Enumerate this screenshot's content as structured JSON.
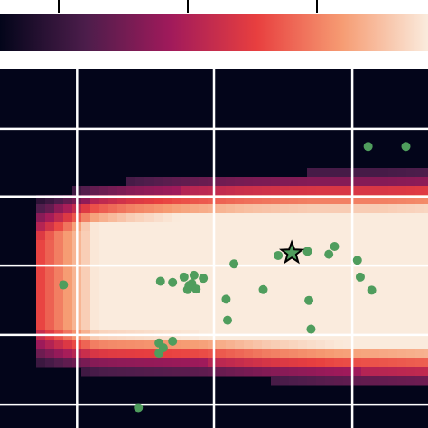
{
  "chart_data": {
    "type": "heatmap",
    "title": "",
    "xlabel": "",
    "ylabel": "",
    "colormap": "rocket",
    "colormap_stops": [
      "#03051a",
      "#4c1d4b",
      "#a11a5b",
      "#e83f3f",
      "#f69c73",
      "#faebdd"
    ],
    "colorbar": {
      "orientation": "horizontal",
      "position": "top",
      "tick_count": 3
    },
    "grid": true,
    "grid_color": "#ffffff",
    "xlim": [
      0,
      60
    ],
    "ylim": [
      0,
      60
    ],
    "heatmap_density": {
      "x_range": [
        5.5,
        60
      ],
      "y_top": [
        24,
        23,
        22,
        21.5,
        21,
        20.7,
        20.4,
        20.2,
        20,
        19.8,
        19.7,
        19.6,
        19.5,
        19.5,
        19.5,
        19.5,
        19.4,
        19.3
      ],
      "y_bottom": [
        47.5,
        48,
        48.3,
        48.5,
        48.6,
        48.7,
        48.8,
        48.9,
        49.2,
        49.5,
        49.8,
        50,
        50.2,
        50.4,
        50.5,
        50.6,
        50.7,
        50.8
      ],
      "peak": 1.0
    },
    "series": [
      {
        "type": "scatter",
        "color": "#4f9d5d",
        "points": [
          [
            51.6,
            13.0
          ],
          [
            56.9,
            13.0
          ],
          [
            8.9,
            36.1
          ],
          [
            22.5,
            35.5
          ],
          [
            24.2,
            35.7
          ],
          [
            25.8,
            34.8
          ],
          [
            28.5,
            35.0
          ],
          [
            27.2,
            34.5
          ],
          [
            26.9,
            35.9
          ],
          [
            26.3,
            36.9
          ],
          [
            26.5,
            36.2
          ],
          [
            27.5,
            36.8
          ],
          [
            32.8,
            32.6
          ],
          [
            36.9,
            36.9
          ],
          [
            31.7,
            38.5
          ],
          [
            31.9,
            42.0
          ],
          [
            39.0,
            31.2
          ],
          [
            43.1,
            30.5
          ],
          [
            46.1,
            31.0
          ],
          [
            46.9,
            29.7
          ],
          [
            43.3,
            38.7
          ],
          [
            43.6,
            43.5
          ],
          [
            50.1,
            32.0
          ],
          [
            50.5,
            34.8
          ],
          [
            52.1,
            37.0
          ],
          [
            22.3,
            45.8
          ],
          [
            24.2,
            45.5
          ],
          [
            22.9,
            46.6
          ],
          [
            22.3,
            47.5
          ],
          [
            19.4,
            56.6
          ]
        ]
      },
      {
        "type": "marker",
        "marker": "star",
        "color": "#4f9d5d",
        "edgecolor": "#000000",
        "points": [
          [
            40.9,
            30.8
          ]
        ]
      }
    ]
  }
}
